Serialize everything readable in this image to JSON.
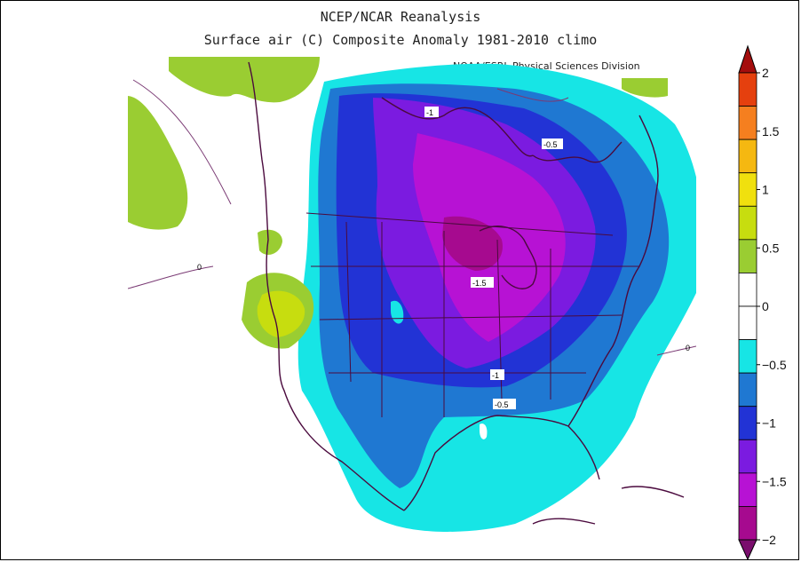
{
  "header": {
    "title": "NCEP/NCAR Reanalysis",
    "subtitle": "Surface air (C) Composite Anomaly 1981-2010 climo",
    "credit": "NOAA/ESRL Physical Sciences Division"
  },
  "colorbar": {
    "ticks": [
      "2",
      "1.5",
      "1",
      "0.5",
      "0",
      "-0.5",
      "-1",
      "-1.5",
      "-2"
    ],
    "colors": [
      "#a40d0d",
      "#e5400e",
      "#f57f1f",
      "#f5b811",
      "#f0e00e",
      "#c7dd0f",
      "#9acd32",
      "#ffffff",
      "#ffffff",
      "#17e5e5",
      "#1f78d2",
      "#2233d5",
      "#7b1be0",
      "#b712d4",
      "#a60a8f",
      "#7a0e6d"
    ]
  },
  "contour_labels": [
    "-1",
    "-0.5",
    "-1.5",
    "-1",
    "-0.5",
    "0",
    "0"
  ],
  "palette": {
    "cyan": "#17e5e5",
    "mid_blue": "#1f78d2",
    "deep_blue": "#2233d5",
    "violet": "#7b1be0",
    "magenta": "#b712d4",
    "green": "#9acd32",
    "yellow_green": "#c7dd0f",
    "boundary": "#4b0a3e"
  }
}
